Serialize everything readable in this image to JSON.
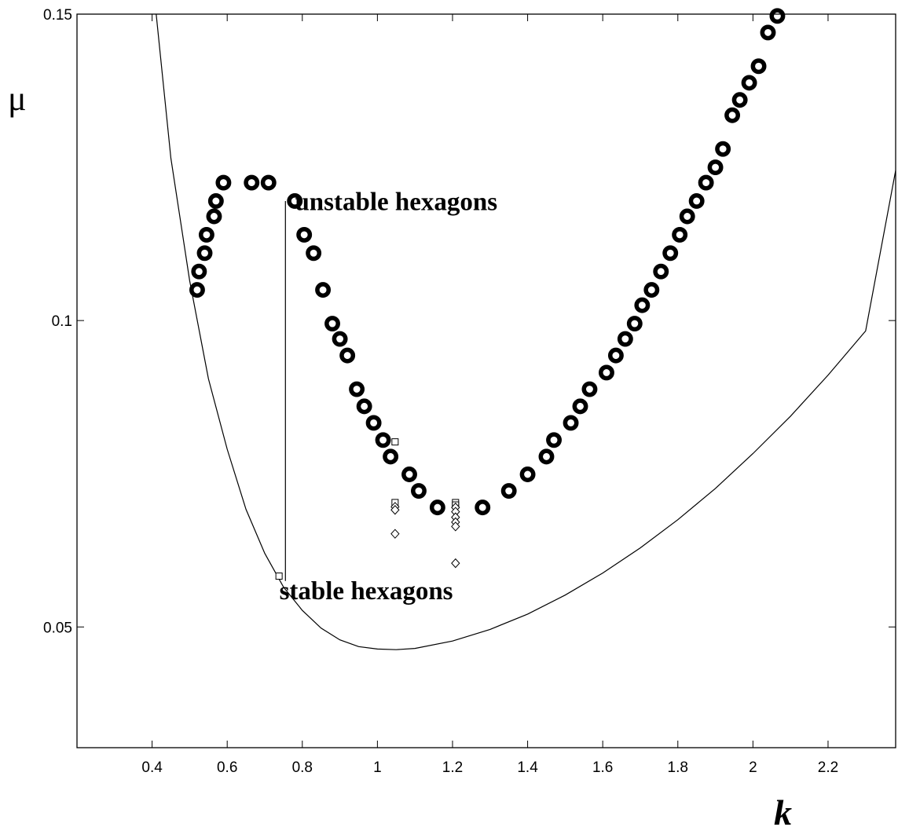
{
  "chart_data": {
    "type": "scatter",
    "title": "",
    "xlabel": "k",
    "ylabel": "μ",
    "xlim": [
      0.2,
      2.38
    ],
    "ylim": [
      0.0303,
      0.15
    ],
    "xticks": [
      0.4,
      0.6,
      0.8,
      1,
      1.2,
      1.4,
      1.6,
      1.8,
      2,
      2.2
    ],
    "xtick_labels": [
      "0.4",
      "0.6",
      "0.8",
      "1",
      "1.2",
      "1.4",
      "1.6",
      "1.8",
      "2",
      "2.2"
    ],
    "yticks": [
      0.05,
      0.1,
      0.15
    ],
    "ytick_labels": [
      "0.05",
      "0.1",
      "0.15"
    ],
    "grid": false,
    "annotations": [
      {
        "text": "unstable hexagons",
        "x": 1.05,
        "y": 0.118
      },
      {
        "text": "stable hexagons",
        "x": 0.97,
        "y": 0.0545
      }
    ],
    "series": [
      {
        "marker": "ring",
        "x": [
          0.52,
          0.525,
          0.54,
          0.545,
          0.565,
          0.57,
          0.59,
          0.665,
          0.71,
          0.78,
          0.805,
          0.83,
          0.855,
          0.88,
          0.9,
          0.92,
          0.945,
          0.965,
          0.99,
          1.015,
          1.035,
          1.085,
          1.11,
          1.16,
          1.28,
          1.35,
          1.4,
          1.45,
          1.47,
          1.515,
          1.54,
          1.565,
          1.61,
          1.635,
          1.66,
          1.685,
          1.705,
          1.73,
          1.755,
          1.78,
          1.805,
          1.825,
          1.85,
          1.875,
          1.9,
          1.92,
          1.945,
          1.965,
          1.99,
          2.015,
          2.04,
          2.065
        ],
        "y": [
          0.105,
          0.108,
          0.111,
          0.114,
          0.117,
          0.1195,
          0.1225,
          0.1225,
          0.1225,
          0.1195,
          0.114,
          0.111,
          0.105,
          0.0995,
          0.097,
          0.0943,
          0.0888,
          0.086,
          0.0833,
          0.0805,
          0.0778,
          0.0749,
          0.0722,
          0.0695,
          0.0695,
          0.0722,
          0.0749,
          0.0778,
          0.0805,
          0.0833,
          0.086,
          0.0888,
          0.0915,
          0.0943,
          0.097,
          0.0995,
          0.1025,
          0.105,
          0.108,
          0.111,
          0.114,
          0.117,
          0.1195,
          0.1225,
          0.125,
          0.128,
          0.1335,
          0.136,
          0.1388,
          0.1415,
          0.147,
          0.1497
        ]
      },
      {
        "marker": "square",
        "x": [
          0.738,
          1.047,
          1.047,
          1.208,
          1.208
        ],
        "y": [
          0.0583,
          0.0802,
          0.0703,
          0.0703,
          0.0699
        ]
      },
      {
        "marker": "diamond",
        "x": [
          1.047,
          1.047,
          1.047,
          1.208,
          1.208,
          1.208,
          1.208,
          1.208,
          1.208
        ],
        "y": [
          0.0696,
          0.0691,
          0.0652,
          0.0695,
          0.0688,
          0.0679,
          0.0671,
          0.0664,
          0.0604
        ]
      },
      {
        "type": "line",
        "x": [
          0.41,
          0.45,
          0.5,
          0.55,
          0.6,
          0.65,
          0.7,
          0.75,
          0.8,
          0.85,
          0.9,
          0.95,
          1.0,
          1.05,
          1.1,
          1.2,
          1.3,
          1.4,
          1.5,
          1.6,
          1.7,
          1.8,
          1.9,
          2.0,
          2.1,
          2.2,
          2.3,
          2.38
        ],
        "y": [
          0.1505,
          0.1265,
          0.1065,
          0.0905,
          0.079,
          0.0692,
          0.062,
          0.0565,
          0.0527,
          0.0498,
          0.0479,
          0.0468,
          0.0464,
          0.0463,
          0.0465,
          0.0477,
          0.0496,
          0.0521,
          0.0552,
          0.0588,
          0.0629,
          0.0675,
          0.0726,
          0.0783,
          0.0844,
          0.0911,
          0.0983,
          0.1245
        ]
      },
      {
        "type": "line",
        "x": [
          0.755,
          0.755
        ],
        "y": [
          0.0575,
          0.1195
        ]
      }
    ]
  }
}
